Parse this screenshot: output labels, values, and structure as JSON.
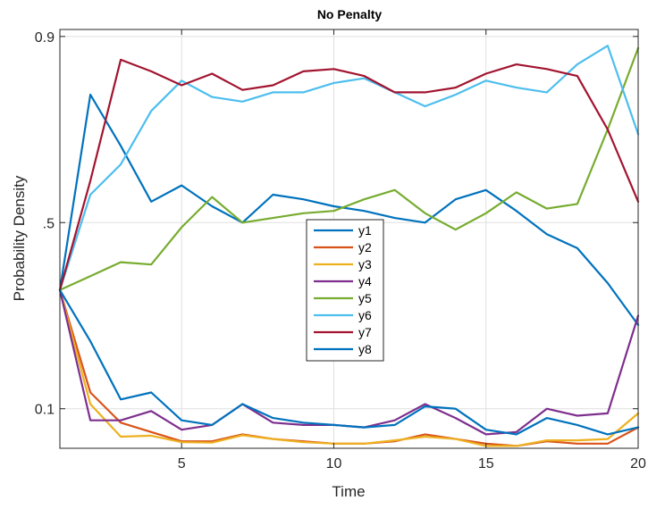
{
  "chart_data": {
    "type": "line",
    "title": "No Penalty",
    "xlabel": "Time",
    "ylabel": "Probability Density",
    "xlim": [
      1,
      20
    ],
    "ylim": [
      0.015,
      0.915
    ],
    "xticks": [
      {
        "value": 5,
        "label": "5"
      },
      {
        "value": 10,
        "label": "10"
      },
      {
        "value": 15,
        "label": "15"
      },
      {
        "value": 20,
        "label": "20"
      }
    ],
    "yticks": [
      {
        "value": 0.1,
        "label": "0.1"
      },
      {
        "value": 0.5,
        "label": ".5"
      },
      {
        "value": 0.9,
        "label": "0.9"
      }
    ],
    "grid": true,
    "legend_position": "center",
    "x": [
      1,
      2,
      3,
      4,
      5,
      6,
      7,
      8,
      9,
      10,
      11,
      12,
      13,
      14,
      15,
      16,
      17,
      18,
      19,
      20
    ],
    "series": [
      {
        "name": "y1",
        "color": "#0072BD",
        "values": [
          0.355,
          0.775,
          0.665,
          0.545,
          0.58,
          0.535,
          0.5,
          0.56,
          0.55,
          0.535,
          0.525,
          0.51,
          0.5,
          0.55,
          0.57,
          0.525,
          0.475,
          0.445,
          0.37,
          0.28
        ]
      },
      {
        "name": "y2",
        "color": "#D95319",
        "values": [
          0.355,
          0.135,
          0.07,
          0.05,
          0.03,
          0.03,
          0.045,
          0.035,
          0.03,
          0.025,
          0.025,
          0.03,
          0.045,
          0.035,
          0.025,
          0.02,
          0.03,
          0.025,
          0.025,
          0.06
        ]
      },
      {
        "name": "y3",
        "color": "#EDB120",
        "values": [
          0.355,
          0.11,
          0.04,
          0.042,
          0.028,
          0.027,
          0.043,
          0.035,
          0.028,
          0.025,
          0.025,
          0.032,
          0.04,
          0.035,
          0.02,
          0.02,
          0.032,
          0.032,
          0.035,
          0.09
        ]
      },
      {
        "name": "y4",
        "color": "#7E2F8E",
        "values": [
          0.355,
          0.075,
          0.075,
          0.095,
          0.055,
          0.065,
          0.11,
          0.07,
          0.065,
          0.065,
          0.06,
          0.075,
          0.11,
          0.08,
          0.045,
          0.05,
          0.1,
          0.085,
          0.09,
          0.3
        ]
      },
      {
        "name": "y5",
        "color": "#77AC30",
        "values": [
          0.355,
          0.385,
          0.415,
          0.41,
          0.49,
          0.555,
          0.5,
          0.51,
          0.52,
          0.525,
          0.55,
          0.57,
          0.52,
          0.485,
          0.52,
          0.565,
          0.53,
          0.54,
          0.7,
          0.875
        ]
      },
      {
        "name": "y6",
        "color": "#4DBEEE",
        "values": [
          0.355,
          0.56,
          0.625,
          0.74,
          0.805,
          0.77,
          0.76,
          0.78,
          0.78,
          0.8,
          0.81,
          0.78,
          0.75,
          0.775,
          0.805,
          0.79,
          0.78,
          0.84,
          0.88,
          0.69
        ]
      },
      {
        "name": "y7",
        "color": "#A2142F",
        "values": [
          0.355,
          0.59,
          0.85,
          0.825,
          0.795,
          0.82,
          0.785,
          0.795,
          0.825,
          0.83,
          0.815,
          0.78,
          0.78,
          0.79,
          0.82,
          0.84,
          0.83,
          0.815,
          0.7,
          0.545
        ]
      },
      {
        "name": "y8",
        "color": "#0072BD",
        "values": [
          0.355,
          0.245,
          0.12,
          0.135,
          0.075,
          0.065,
          0.11,
          0.08,
          0.07,
          0.065,
          0.06,
          0.065,
          0.105,
          0.1,
          0.055,
          0.045,
          0.08,
          0.065,
          0.045,
          0.06
        ]
      }
    ]
  }
}
